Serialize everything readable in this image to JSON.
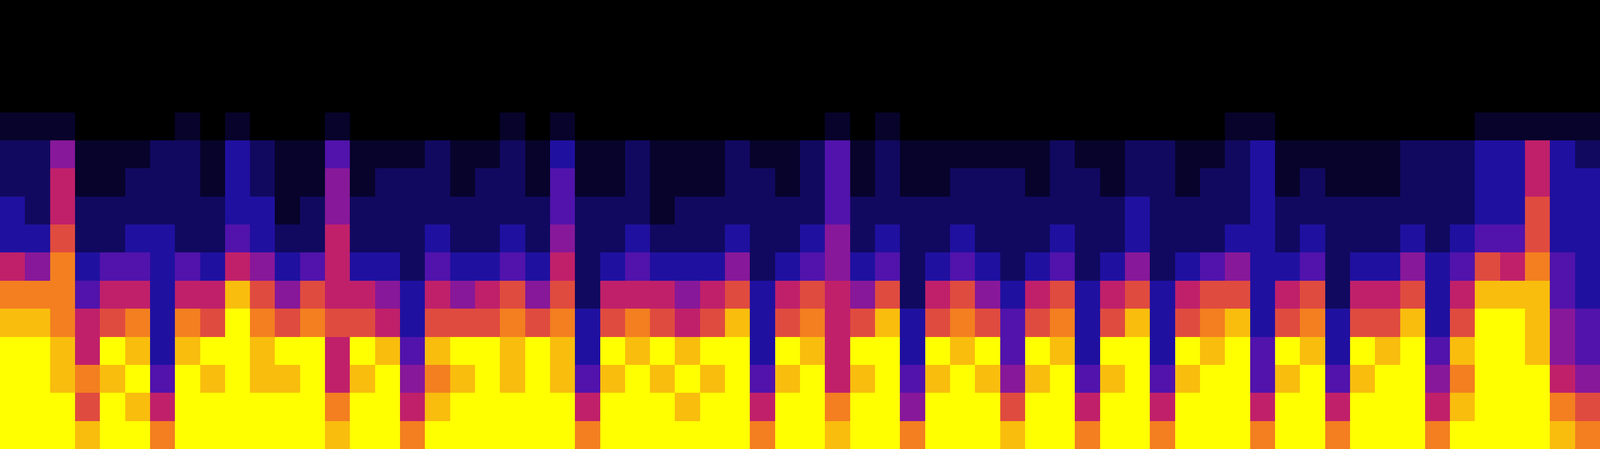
{
  "chart_data": {
    "type": "heatmap",
    "zlim": [
      0,
      10
    ],
    "tick_labels": false,
    "cells": [
      [
        10,
        10,
        10,
        10,
        9,
        8,
        6,
        3,
        3,
        2,
        2,
        1,
        0,
        0,
        0,
        0
      ],
      [
        10,
        10,
        10,
        10,
        9,
        8,
        5,
        3,
        2,
        2,
        2,
        1,
        0,
        0,
        0,
        0
      ],
      [
        10,
        10,
        9,
        9,
        8,
        8,
        8,
        7,
        6,
        6,
        5,
        1,
        0,
        0,
        0,
        0
      ],
      [
        9,
        7,
        8,
        6,
        6,
        4,
        3,
        2,
        2,
        1,
        1,
        0,
        0,
        0,
        0,
        0
      ],
      [
        10,
        10,
        9,
        10,
        7,
        6,
        4,
        2,
        2,
        1,
        1,
        0,
        0,
        0,
        0,
        0
      ],
      [
        10,
        9,
        10,
        9,
        8,
        6,
        4,
        3,
        2,
        2,
        1,
        0,
        0,
        0,
        0,
        0
      ],
      [
        8,
        6,
        4,
        3,
        3,
        3,
        3,
        3,
        2,
        2,
        2,
        0,
        0,
        0,
        0,
        0
      ],
      [
        10,
        10,
        10,
        9,
        8,
        6,
        4,
        2,
        2,
        2,
        2,
        1,
        0,
        0,
        0,
        0
      ],
      [
        10,
        10,
        9,
        10,
        7,
        6,
        3,
        2,
        2,
        1,
        1,
        0,
        0,
        0,
        0,
        0
      ],
      [
        10,
        10,
        10,
        10,
        10,
        9,
        6,
        4,
        3,
        3,
        3,
        1,
        0,
        0,
        0,
        0
      ],
      [
        10,
        10,
        9,
        9,
        8,
        7,
        5,
        3,
        3,
        2,
        2,
        0,
        0,
        0,
        0,
        0
      ],
      [
        10,
        10,
        9,
        10,
        7,
        5,
        3,
        2,
        1,
        1,
        1,
        0,
        0,
        0,
        0,
        0
      ],
      [
        10,
        10,
        10,
        10,
        8,
        7,
        4,
        2,
        2,
        1,
        1,
        0,
        0,
        0,
        0,
        0
      ],
      [
        9,
        8,
        6,
        6,
        7,
        6,
        6,
        6,
        5,
        5,
        4,
        1,
        0,
        0,
        0,
        0
      ],
      [
        10,
        10,
        9,
        10,
        7,
        6,
        3,
        2,
        2,
        1,
        1,
        0,
        0,
        0,
        0,
        0
      ],
      [
        10,
        10,
        10,
        9,
        6,
        5,
        3,
        2,
        2,
        2,
        1,
        0,
        0,
        0,
        0,
        0
      ],
      [
        8,
        6,
        5,
        4,
        3,
        3,
        2,
        2,
        2,
        2,
        1,
        0,
        0,
        0,
        0,
        0
      ],
      [
        10,
        9,
        8,
        9,
        7,
        6,
        4,
        3,
        2,
        2,
        2,
        0,
        0,
        0,
        0,
        0
      ],
      [
        10,
        10,
        9,
        10,
        7,
        5,
        3,
        2,
        2,
        1,
        1,
        0,
        0,
        0,
        0,
        0
      ],
      [
        10,
        10,
        10,
        10,
        7,
        6,
        3,
        2,
        2,
        2,
        1,
        0,
        0,
        0,
        0,
        0
      ],
      [
        10,
        10,
        9,
        9,
        8,
        7,
        4,
        3,
        2,
        2,
        2,
        1,
        0,
        0,
        0,
        0
      ],
      [
        10,
        10,
        10,
        10,
        7,
        5,
        3,
        2,
        2,
        1,
        1,
        0,
        0,
        0,
        0,
        0
      ],
      [
        10,
        10,
        9,
        9,
        8,
        7,
        6,
        5,
        4,
        4,
        3,
        1,
        0,
        0,
        0,
        0
      ],
      [
        8,
        6,
        4,
        3,
        3,
        2,
        2,
        2,
        2,
        1,
        1,
        0,
        0,
        0,
        0,
        0
      ],
      [
        10,
        10,
        9,
        10,
        7,
        6,
        3,
        2,
        2,
        1,
        1,
        0,
        0,
        0,
        0,
        0
      ],
      [
        10,
        10,
        10,
        9,
        8,
        6,
        4,
        3,
        2,
        2,
        2,
        0,
        0,
        0,
        0,
        0
      ],
      [
        10,
        10,
        9,
        10,
        7,
        6,
        3,
        2,
        1,
        1,
        1,
        0,
        0,
        0,
        0,
        0
      ],
      [
        10,
        9,
        10,
        9,
        6,
        5,
        3,
        2,
        2,
        1,
        1,
        0,
        0,
        0,
        0,
        0
      ],
      [
        10,
        10,
        9,
        10,
        7,
        6,
        3,
        2,
        2,
        1,
        1,
        0,
        0,
        0,
        0,
        0
      ],
      [
        10,
        10,
        10,
        10,
        9,
        7,
        5,
        3,
        2,
        2,
        2,
        0,
        0,
        0,
        0,
        0
      ],
      [
        8,
        6,
        4,
        3,
        3,
        3,
        2,
        2,
        2,
        2,
        1,
        0,
        0,
        0,
        0,
        0
      ],
      [
        10,
        10,
        9,
        10,
        7,
        6,
        3,
        2,
        2,
        1,
        1,
        0,
        0,
        0,
        0,
        0
      ],
      [
        10,
        10,
        10,
        9,
        8,
        7,
        4,
        3,
        2,
        2,
        2,
        0,
        0,
        0,
        0,
        0
      ],
      [
        9,
        8,
        6,
        6,
        6,
        6,
        5,
        5,
        4,
        4,
        4,
        1,
        0,
        0,
        0,
        0
      ],
      [
        10,
        10,
        9,
        10,
        7,
        5,
        3,
        2,
        2,
        1,
        1,
        0,
        0,
        0,
        0,
        0
      ],
      [
        10,
        10,
        10,
        10,
        9,
        7,
        4,
        3,
        2,
        2,
        2,
        1,
        0,
        0,
        0,
        0
      ],
      [
        8,
        5,
        4,
        3,
        3,
        2,
        2,
        2,
        2,
        1,
        1,
        0,
        0,
        0,
        0,
        0
      ],
      [
        10,
        10,
        9,
        10,
        7,
        6,
        3,
        2,
        2,
        1,
        1,
        0,
        0,
        0,
        0,
        0
      ],
      [
        10,
        10,
        10,
        9,
        8,
        7,
        4,
        3,
        2,
        2,
        1,
        0,
        0,
        0,
        0,
        0
      ],
      [
        10,
        10,
        9,
        10,
        7,
        5,
        3,
        2,
        2,
        2,
        1,
        0,
        0,
        0,
        0,
        0
      ],
      [
        9,
        7,
        5,
        4,
        4,
        3,
        2,
        2,
        2,
        2,
        1,
        0,
        0,
        0,
        0,
        0
      ],
      [
        10,
        10,
        9,
        10,
        7,
        6,
        3,
        2,
        2,
        1,
        1,
        0,
        0,
        0,
        0,
        0
      ],
      [
        10,
        10,
        10,
        9,
        8,
        7,
        4,
        3,
        2,
        2,
        2,
        0,
        0,
        0,
        0,
        0
      ],
      [
        8,
        6,
        4,
        3,
        3,
        3,
        2,
        2,
        2,
        2,
        1,
        0,
        0,
        0,
        0,
        0
      ],
      [
        10,
        10,
        9,
        10,
        7,
        6,
        3,
        2,
        2,
        1,
        1,
        0,
        0,
        0,
        0,
        0
      ],
      [
        10,
        10,
        10,
        10,
        9,
        7,
        5,
        3,
        3,
        2,
        2,
        0,
        0,
        0,
        0,
        0
      ],
      [
        8,
        6,
        4,
        3,
        3,
        3,
        2,
        2,
        2,
        2,
        2,
        0,
        0,
        0,
        0,
        0
      ],
      [
        10,
        10,
        9,
        10,
        7,
        6,
        3,
        2,
        2,
        1,
        1,
        0,
        0,
        0,
        0,
        0
      ],
      [
        10,
        10,
        10,
        9,
        8,
        7,
        4,
        2,
        2,
        2,
        1,
        0,
        0,
        0,
        0,
        0
      ],
      [
        10,
        10,
        10,
        10,
        9,
        7,
        5,
        3,
        2,
        2,
        2,
        1,
        0,
        0,
        0,
        0
      ],
      [
        8,
        6,
        4,
        4,
        3,
        3,
        3,
        3,
        3,
        3,
        3,
        1,
        0,
        0,
        0,
        0
      ],
      [
        10,
        10,
        9,
        10,
        7,
        6,
        3,
        2,
        2,
        1,
        1,
        0,
        0,
        0,
        0,
        0
      ],
      [
        10,
        10,
        10,
        9,
        8,
        7,
        4,
        3,
        2,
        2,
        1,
        0,
        0,
        0,
        0,
        0
      ],
      [
        8,
        6,
        4,
        3,
        3,
        2,
        2,
        2,
        2,
        1,
        1,
        0,
        0,
        0,
        0,
        0
      ],
      [
        10,
        10,
        9,
        10,
        7,
        6,
        3,
        2,
        2,
        1,
        1,
        0,
        0,
        0,
        0,
        0
      ],
      [
        10,
        10,
        10,
        9,
        7,
        6,
        3,
        2,
        2,
        1,
        1,
        0,
        0,
        0,
        0,
        0
      ],
      [
        10,
        10,
        10,
        10,
        9,
        7,
        5,
        3,
        2,
        2,
        2,
        0,
        0,
        0,
        0,
        0
      ],
      [
        8,
        6,
        5,
        4,
        3,
        3,
        3,
        2,
        2,
        2,
        2,
        0,
        0,
        0,
        0,
        0
      ],
      [
        10,
        9,
        8,
        9,
        7,
        6,
        4,
        3,
        2,
        2,
        2,
        0,
        0,
        0,
        0,
        0
      ],
      [
        10,
        10,
        10,
        10,
        10,
        9,
        7,
        4,
        3,
        3,
        3,
        1,
        0,
        0,
        0,
        0
      ],
      [
        10,
        10,
        10,
        10,
        10,
        9,
        6,
        4,
        3,
        3,
        3,
        1,
        0,
        0,
        0,
        0
      ],
      [
        10,
        10,
        10,
        9,
        9,
        9,
        8,
        7,
        7,
        6,
        6,
        1,
        0,
        0,
        0,
        0
      ],
      [
        9,
        8,
        6,
        5,
        5,
        4,
        4,
        3,
        3,
        3,
        3,
        1,
        0,
        0,
        0,
        0
      ],
      [
        8,
        7,
        5,
        4,
        4,
        3,
        3,
        3,
        3,
        3,
        2,
        1,
        0,
        0,
        0,
        0
      ]
    ]
  }
}
